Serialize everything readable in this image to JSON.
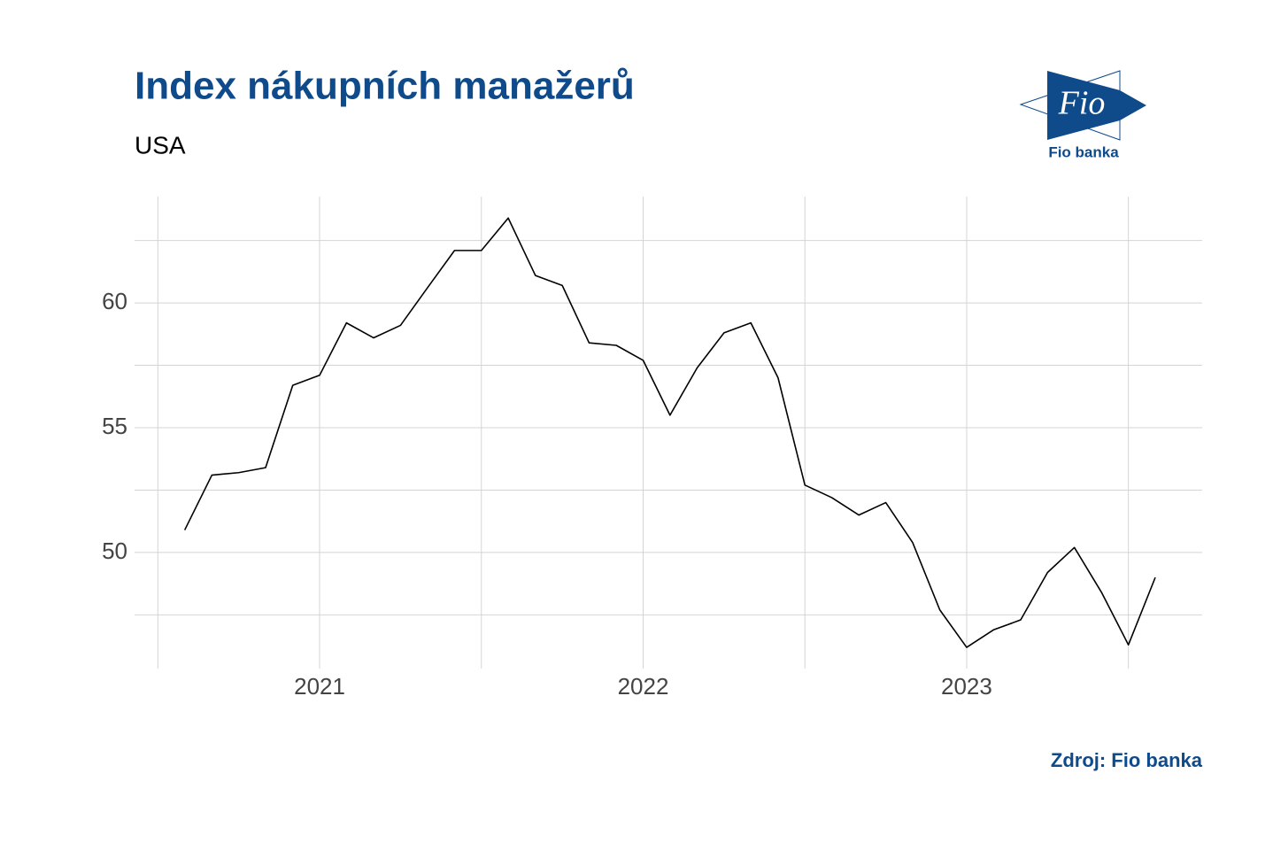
{
  "chart_data": {
    "type": "line",
    "title": "Index nákupních manažerů",
    "subtitle": "USA",
    "caption": "Zdroj: Fio banka",
    "x": [
      2020.583,
      2020.667,
      2020.75,
      2020.833,
      2020.917,
      2021,
      2021.083,
      2021.167,
      2021.25,
      2021.333,
      2021.417,
      2021.5,
      2021.583,
      2021.667,
      2021.75,
      2021.833,
      2021.917,
      2022,
      2022.083,
      2022.167,
      2022.25,
      2022.333,
      2022.417,
      2022.5,
      2022.583,
      2022.667,
      2022.75,
      2022.833,
      2022.917,
      2023,
      2023.083,
      2023.167,
      2023.25,
      2023.333,
      2023.417,
      2023.5,
      2023.583
    ],
    "values": [
      50.9,
      53.1,
      53.2,
      53.4,
      56.7,
      57.1,
      59.2,
      58.6,
      59.1,
      60.6,
      62.1,
      62.1,
      63.4,
      61.1,
      60.7,
      58.4,
      58.3,
      57.7,
      55.5,
      57.4,
      58.8,
      59.2,
      57.0,
      52.7,
      52.2,
      51.5,
      52.0,
      50.4,
      47.7,
      46.2,
      46.9,
      47.3,
      49.2,
      50.2,
      48.4,
      46.3,
      49.0
    ],
    "color": "#000000",
    "xlim": [
      2020.428,
      2023.728
    ],
    "xticks": [
      2021,
      2022,
      2023
    ],
    "xminor": [
      2020.5,
      2021.5,
      2022.5,
      2023.5
    ],
    "ylim": [
      45.35,
      64.26
    ],
    "yticks": [
      50,
      55,
      60
    ],
    "yminor": [
      47.5,
      52.5,
      57.5,
      62.5
    ],
    "grid": true
  },
  "logo": {
    "mark": "Fio",
    "name": "Fio banka"
  }
}
